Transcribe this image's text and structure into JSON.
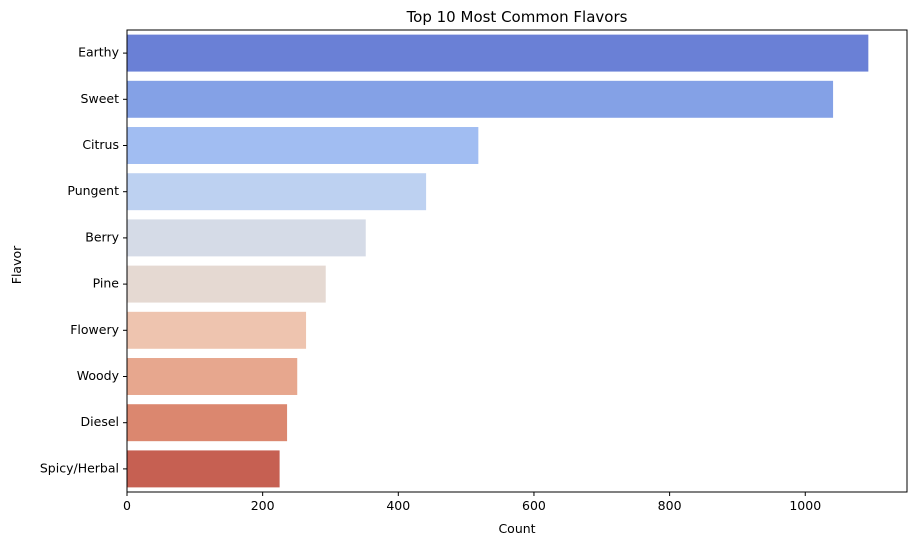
{
  "chart_data": {
    "type": "bar",
    "orientation": "horizontal",
    "title": "Top 10 Most Common Flavors",
    "xlabel": "Count",
    "ylabel": "Flavor",
    "categories": [
      "Earthy",
      "Sweet",
      "Citrus",
      "Pungent",
      "Berry",
      "Pine",
      "Flowery",
      "Woody",
      "Diesel",
      "Spicy/Herbal"
    ],
    "values": [
      1093,
      1041,
      518,
      441,
      352,
      293,
      264,
      251,
      236,
      225
    ],
    "colors": [
      "#6A80D6",
      "#84A1E6",
      "#A1BDF2",
      "#BDD1F1",
      "#D5DBE7",
      "#E5D9D2",
      "#EEC4AF",
      "#E7A78E",
      "#DB876F",
      "#C66052"
    ],
    "xlim": [
      0,
      1150
    ],
    "xticks": [
      0,
      200,
      400,
      600,
      800,
      1000
    ],
    "xtick_labels": [
      "0",
      "200",
      "400",
      "600",
      "800",
      "1000"
    ],
    "grid": false,
    "legend": "none"
  }
}
